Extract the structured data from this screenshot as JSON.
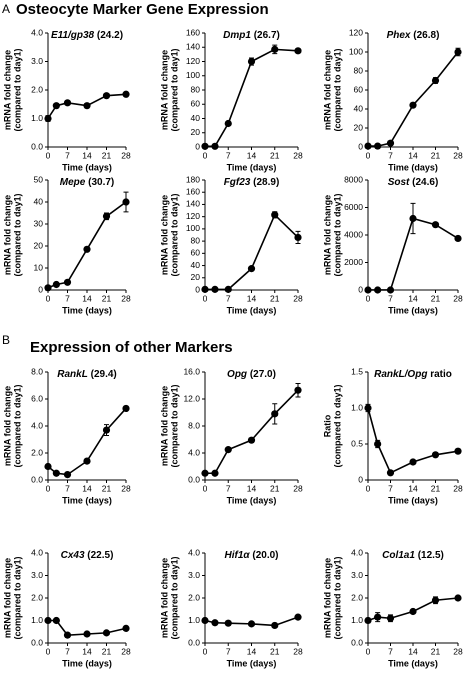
{
  "sections": [
    {
      "letter": "A",
      "title": "Osteocyte Marker Gene Expression"
    },
    {
      "letter": "B",
      "title": "Expression of other Markers"
    }
  ],
  "chart_data": [
    {
      "type": "line",
      "title": "E11/gp38",
      "subtitle": "(24.2)",
      "x": [
        0,
        3,
        7,
        14,
        21,
        28
      ],
      "values": [
        1.0,
        1.45,
        1.55,
        1.45,
        1.8,
        1.85
      ],
      "errors": [
        0.1,
        0.05,
        0.05,
        0.05,
        0.05,
        0.05
      ],
      "color": "#000000",
      "xlim": [
        0,
        28
      ],
      "xticks": [
        0,
        7,
        14,
        21,
        28
      ],
      "ylim": [
        0,
        4
      ],
      "yticks": [
        {
          "value": 0,
          "label": "0.0"
        },
        {
          "value": 1,
          "label": "1.0"
        },
        {
          "value": 2,
          "label": "2.0"
        },
        {
          "value": 3,
          "label": "3.0"
        },
        {
          "value": 4,
          "label": "4.0"
        }
      ],
      "xlabel": "Time (days)",
      "ylabel": [
        "mRNA fold change",
        "(compared to day1)"
      ]
    },
    {
      "type": "line",
      "title": "Dmp1",
      "subtitle": "(26.7)",
      "x": [
        0,
        3,
        7,
        14,
        21,
        28
      ],
      "values": [
        1,
        1,
        33,
        120,
        137,
        135
      ],
      "errors": [
        0,
        0,
        2,
        5,
        6,
        2
      ],
      "color": "#000000",
      "xlim": [
        0,
        28
      ],
      "xticks": [
        0,
        7,
        14,
        21,
        28
      ],
      "ylim": [
        0,
        160
      ],
      "yticks": [
        0,
        20,
        40,
        60,
        80,
        100,
        120,
        140,
        160
      ],
      "xlabel": "Time (days)",
      "ylabel": [
        "mRNA fold change",
        "(compared to day1)"
      ]
    },
    {
      "type": "line",
      "title": "Phex",
      "subtitle": "(26.8)",
      "x": [
        0,
        3,
        7,
        14,
        21,
        28
      ],
      "values": [
        1,
        1,
        4,
        44,
        70,
        100
      ],
      "errors": [
        0,
        0,
        1,
        2,
        3,
        4
      ],
      "color": "#000000",
      "xlim": [
        0,
        28
      ],
      "xticks": [
        0,
        7,
        14,
        21,
        28
      ],
      "ylim": [
        0,
        120
      ],
      "yticks": [
        0,
        20,
        40,
        60,
        80,
        100,
        120
      ],
      "xlabel": "Time (days)",
      "ylabel": [
        "mRNA fold change",
        "(compared to day1)"
      ]
    },
    {
      "type": "line",
      "title": "Mepe",
      "subtitle": "(30.7)",
      "x": [
        0,
        3,
        7,
        14,
        21,
        28
      ],
      "values": [
        1,
        2.5,
        3.5,
        18.5,
        33.5,
        40
      ],
      "errors": [
        0,
        0.5,
        0.5,
        1,
        1.5,
        4.5
      ],
      "color": "#000000",
      "xlim": [
        0,
        28
      ],
      "xticks": [
        0,
        7,
        14,
        21,
        28
      ],
      "ylim": [
        0,
        50
      ],
      "yticks": [
        0,
        10,
        20,
        30,
        40,
        50
      ],
      "xlabel": "Time (days)",
      "ylabel": [
        "mRNA fold change",
        "(compared to day1)"
      ]
    },
    {
      "type": "line",
      "title": "Fgf23",
      "subtitle": "(28.9)",
      "x": [
        0,
        3,
        7,
        14,
        21,
        28
      ],
      "values": [
        1,
        1,
        1,
        35,
        123,
        86
      ],
      "errors": [
        0,
        0,
        0,
        2,
        5,
        10
      ],
      "color": "#000000",
      "xlim": [
        0,
        28
      ],
      "xticks": [
        0,
        7,
        14,
        21,
        28
      ],
      "ylim": [
        0,
        180
      ],
      "yticks": [
        0,
        20,
        40,
        60,
        80,
        100,
        120,
        140,
        160,
        180
      ],
      "xlabel": "Time (days)",
      "ylabel": [
        "mRNA fold change",
        "(compared to day1)"
      ]
    },
    {
      "type": "line",
      "title": "Sost",
      "subtitle": "(24.6)",
      "x": [
        0,
        3,
        7,
        14,
        21,
        28
      ],
      "values": [
        1,
        1,
        1,
        5200,
        4750,
        3750
      ],
      "errors": [
        0,
        0,
        0,
        1100,
        150,
        100
      ],
      "color": "#000000",
      "xlim": [
        0,
        28
      ],
      "xticks": [
        0,
        7,
        14,
        21,
        28
      ],
      "ylim": [
        0,
        8000
      ],
      "yticks": [
        0,
        2000,
        4000,
        6000,
        8000
      ],
      "xlabel": "Time (days)",
      "ylabel": [
        "mRNA fold change",
        "(compared to day1)"
      ]
    },
    {
      "type": "line",
      "title": "RankL",
      "subtitle": "(29.4)",
      "x": [
        0,
        3,
        7,
        14,
        21,
        28
      ],
      "values": [
        1,
        0.5,
        0.4,
        1.4,
        3.7,
        5.3
      ],
      "errors": [
        0.05,
        0.05,
        0.05,
        0.1,
        0.4,
        0.1
      ],
      "color": "#000000",
      "xlim": [
        0,
        28
      ],
      "xticks": [
        0,
        7,
        14,
        21,
        28
      ],
      "ylim": [
        0,
        8
      ],
      "yticks": [
        {
          "value": 0,
          "label": "0.0"
        },
        {
          "value": 2,
          "label": "2.0"
        },
        {
          "value": 4,
          "label": "4.0"
        },
        {
          "value": 6,
          "label": "6.0"
        },
        {
          "value": 8,
          "label": "8.0"
        }
      ],
      "xlabel": "Time (days)",
      "ylabel": [
        "mRNA fold change",
        "(compared to day1)"
      ]
    },
    {
      "type": "line",
      "title": "Opg",
      "subtitle": "(27.0)",
      "x": [
        0,
        3,
        7,
        14,
        21,
        28
      ],
      "values": [
        1,
        1,
        4.5,
        5.9,
        9.8,
        13.3
      ],
      "errors": [
        0.1,
        0.1,
        0.3,
        0.3,
        1.5,
        1.0
      ],
      "color": "#000000",
      "xlim": [
        0,
        28
      ],
      "xticks": [
        0,
        7,
        14,
        21,
        28
      ],
      "ylim": [
        0,
        16
      ],
      "yticks": [
        {
          "value": 0,
          "label": "0.0"
        },
        {
          "value": 4,
          "label": "4.0"
        },
        {
          "value": 8,
          "label": "8.0"
        },
        {
          "value": 12,
          "label": "12.0"
        },
        {
          "value": 16,
          "label": "16.0"
        }
      ],
      "xlabel": "Time (days)",
      "ylabel": [
        "mRNA fold change",
        "(compared to day1)"
      ]
    },
    {
      "type": "line",
      "title": "RankL/Opg",
      "subtitle": "ratio",
      "x": [
        0,
        3,
        7,
        14,
        21,
        28
      ],
      "values": [
        1,
        0.5,
        0.1,
        0.25,
        0.35,
        0.4
      ],
      "errors": [
        0.05,
        0.05,
        0.02,
        0.03,
        0.03,
        0.03
      ],
      "color": "#000000",
      "xlim": [
        0,
        28
      ],
      "xticks": [
        0,
        7,
        14,
        21,
        28
      ],
      "ylim": [
        0,
        1.5
      ],
      "yticks": [
        0,
        0.5,
        {
          "value": 1,
          "label": "1.0"
        },
        1.5
      ],
      "xlabel": "Time (days)",
      "ylabel": [
        "Ratio",
        "(compared to day1)"
      ]
    },
    {
      "type": "line",
      "title": "Cx43",
      "subtitle": "(22.5)",
      "x": [
        0,
        3,
        7,
        14,
        21,
        28
      ],
      "values": [
        1,
        1,
        0.35,
        0.4,
        0.45,
        0.65
      ],
      "errors": [
        0.05,
        0.05,
        0.03,
        0.03,
        0.05,
        0.05
      ],
      "color": "#000000",
      "xlim": [
        0,
        28
      ],
      "xticks": [
        0,
        7,
        14,
        21,
        28
      ],
      "ylim": [
        0,
        4
      ],
      "yticks": [
        {
          "value": 0,
          "label": "0.0"
        },
        {
          "value": 1,
          "label": "1.0"
        },
        {
          "value": 2,
          "label": "2.0"
        },
        {
          "value": 3,
          "label": "3.0"
        },
        {
          "value": 4,
          "label": "4.0"
        }
      ],
      "xlabel": "Time (days)",
      "ylabel": [
        "mRNA fold change",
        "(compared to day1)"
      ]
    },
    {
      "type": "line",
      "title": "Hif1α",
      "subtitle": "(20.0)",
      "x": [
        0,
        3,
        7,
        14,
        21,
        28
      ],
      "values": [
        1.0,
        0.9,
        0.88,
        0.85,
        0.78,
        1.15
      ],
      "errors": [
        0.05,
        0.05,
        0.03,
        0.03,
        0.03,
        0.05
      ],
      "color": "#000000",
      "xlim": [
        0,
        28
      ],
      "xticks": [
        0,
        7,
        14,
        21,
        28
      ],
      "ylim": [
        0,
        4
      ],
      "yticks": [
        {
          "value": 0,
          "label": "0.0"
        },
        {
          "value": 1,
          "label": "1.0"
        },
        {
          "value": 2,
          "label": "2.0"
        },
        {
          "value": 3,
          "label": "3.0"
        },
        {
          "value": 4,
          "label": "4.0"
        }
      ],
      "xlabel": "Time (days)",
      "ylabel": [
        "mRNA fold change",
        "(compared to day1)"
      ]
    },
    {
      "type": "line",
      "title": "Col1a1",
      "subtitle": "(12.5)",
      "x": [
        0,
        3,
        7,
        14,
        21,
        28
      ],
      "values": [
        1,
        1.15,
        1.1,
        1.4,
        1.9,
        2.0
      ],
      "errors": [
        0.1,
        0.2,
        0.15,
        0.05,
        0.15,
        0.05
      ],
      "color": "#000000",
      "xlim": [
        0,
        28
      ],
      "xticks": [
        0,
        7,
        14,
        21,
        28
      ],
      "ylim": [
        0,
        4
      ],
      "yticks": [
        {
          "value": 0,
          "label": "0.0"
        },
        {
          "value": 1,
          "label": "1.0"
        },
        {
          "value": 2,
          "label": "2.0"
        },
        {
          "value": 3,
          "label": "3.0"
        },
        {
          "value": 4,
          "label": "4.0"
        }
      ],
      "xlabel": "Time (days)",
      "ylabel": [
        "mRNA fold change",
        "(compared to day1)"
      ]
    }
  ]
}
